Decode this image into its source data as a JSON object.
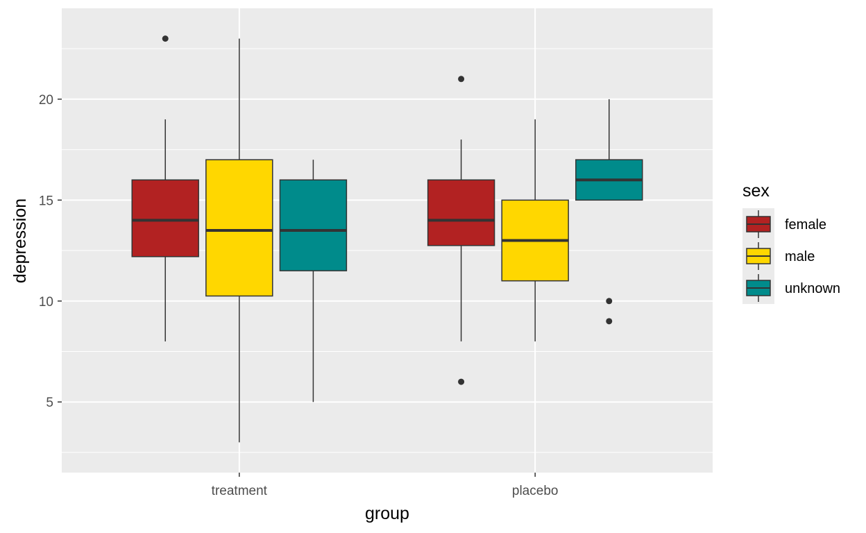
{
  "chart_data": {
    "type": "boxplot",
    "xlabel": "group",
    "ylabel": "depression",
    "categories": [
      "treatment",
      "placebo"
    ],
    "y_ticks": [
      5,
      10,
      15,
      20
    ],
    "ylim": [
      1.5,
      24.5
    ],
    "grid": true,
    "legend": {
      "title": "sex",
      "placement": "right",
      "entries": [
        "female",
        "male",
        "unknown"
      ]
    },
    "colors": {
      "female": "#B22222",
      "male": "#FFD700",
      "unknown": "#008B8B",
      "panel_background": "#EBEBEB",
      "grid": "#FFFFFF",
      "outline": "#333333"
    },
    "series": [
      {
        "name": "female",
        "boxes": [
          {
            "category": "treatment",
            "lower_whisker": 8,
            "q1": 12.2,
            "median": 14,
            "q3": 16,
            "upper_whisker": 19,
            "outliers": [
              23
            ]
          },
          {
            "category": "placebo",
            "lower_whisker": 8,
            "q1": 12.75,
            "median": 14,
            "q3": 16,
            "upper_whisker": 18,
            "outliers": [
              21,
              6
            ]
          }
        ]
      },
      {
        "name": "male",
        "boxes": [
          {
            "category": "treatment",
            "lower_whisker": 3,
            "q1": 10.25,
            "median": 13.5,
            "q3": 17,
            "upper_whisker": 23,
            "outliers": []
          },
          {
            "category": "placebo",
            "lower_whisker": 8,
            "q1": 11,
            "median": 13,
            "q3": 15,
            "upper_whisker": 19,
            "outliers": []
          }
        ]
      },
      {
        "name": "unknown",
        "boxes": [
          {
            "category": "treatment",
            "lower_whisker": 5,
            "q1": 11.5,
            "median": 13.5,
            "q3": 16,
            "upper_whisker": 17,
            "outliers": []
          },
          {
            "category": "placebo",
            "lower_whisker": 15,
            "q1": 15,
            "median": 16,
            "q3": 17,
            "upper_whisker": 20,
            "outliers": [
              10,
              9
            ]
          }
        ]
      }
    ]
  }
}
